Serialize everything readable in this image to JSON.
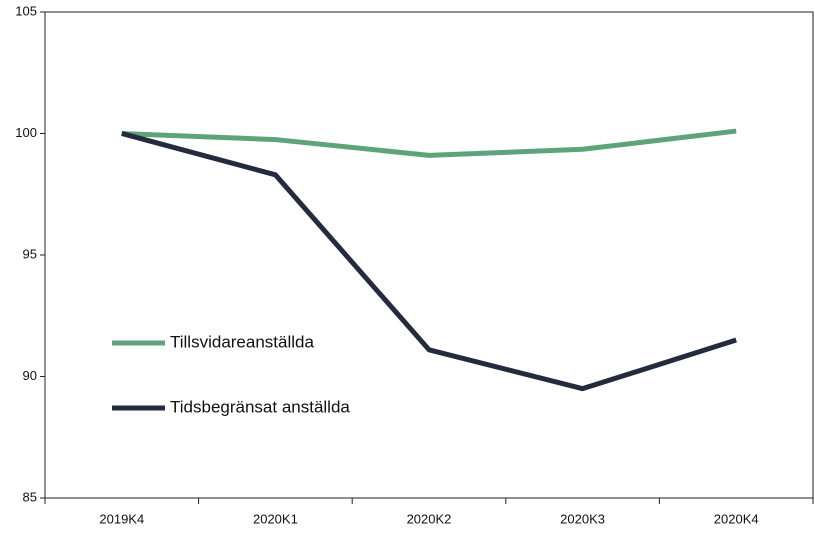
{
  "chart_data": {
    "type": "line",
    "categories": [
      "2019K4",
      "2020K1",
      "2020K2",
      "2020K3",
      "2020K4"
    ],
    "series": [
      {
        "name": "Tillsvidareanställda",
        "color": "#5fa37a",
        "values": [
          100,
          99.75,
          99.1,
          99.35,
          100.1
        ]
      },
      {
        "name": "Tidsbegränsat anställda",
        "color": "#232b3d",
        "values": [
          100,
          98.3,
          91.1,
          89.5,
          91.5
        ]
      }
    ],
    "ylim": [
      85,
      105
    ],
    "yticks": [
      85,
      90,
      95,
      100,
      105
    ],
    "grid": false,
    "legend": "left"
  }
}
